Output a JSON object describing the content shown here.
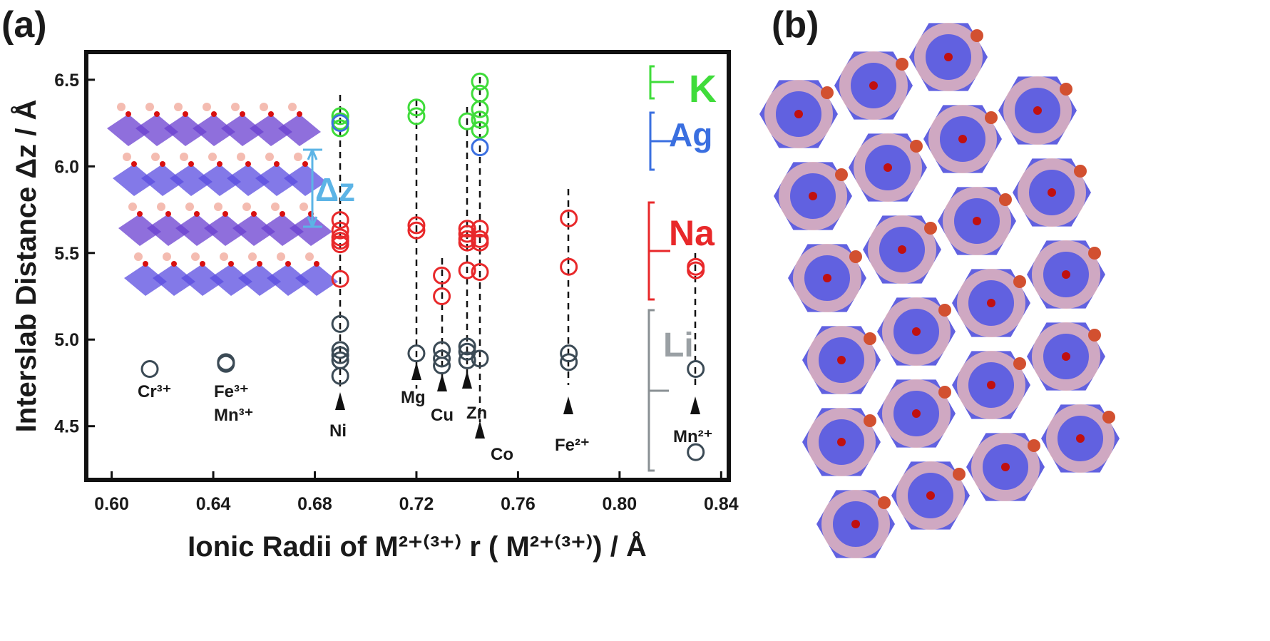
{
  "panels": [
    "(a)",
    "(b)"
  ],
  "chart_data": {
    "type": "scatter",
    "x_label": "Ionic Radii of M²⁺⁽³⁺⁾ r ( M²⁺⁽³⁺⁾) / Å",
    "y_label": "Interslab Distance Δz / Å",
    "inset_label": "Δz",
    "annotations": [
      "Cr³⁺",
      "Fe³⁺",
      "Mn³⁺",
      "Ni",
      "Mg",
      "Cu",
      "Zn",
      "Co",
      "Fe²⁺",
      "Mn²⁺"
    ],
    "xlim": [
      0.59,
      0.843
    ],
    "ylim": [
      4.19,
      6.66
    ],
    "xticks": [
      {
        "value": 0.6,
        "label": "0.60"
      },
      0.64,
      0.68,
      0.72,
      0.76,
      {
        "value": 0.8,
        "label": "0.80"
      },
      0.84
    ],
    "yticks": [
      4.5,
      {
        "value": 5,
        "label": "5.0"
      },
      5.5,
      {
        "value": 6,
        "label": "6.0"
      },
      6.5
    ],
    "series": [
      {
        "name": "K",
        "color": "#3fdc3a",
        "x": [
          0.69,
          0.69,
          0.69,
          0.72,
          0.72,
          0.74,
          0.745,
          0.745,
          0.745,
          0.745,
          0.745
        ],
        "values": [
          6.29,
          6.26,
          6.22,
          6.34,
          6.29,
          6.26,
          6.49,
          6.42,
          6.33,
          6.27,
          6.21
        ]
      },
      {
        "name": "Ag",
        "color": "#3a6fe0",
        "x": [
          0.69,
          0.745
        ],
        "values": [
          6.25,
          6.11
        ]
      },
      {
        "name": "Na",
        "color": "#e8282a",
        "x": [
          0.69,
          0.69,
          0.69,
          0.69,
          0.69,
          0.69,
          0.72,
          0.72,
          0.73,
          0.73,
          0.74,
          0.74,
          0.74,
          0.74,
          0.74,
          0.745,
          0.745,
          0.745,
          0.745,
          0.78,
          0.78,
          0.83,
          0.83
        ],
        "values": [
          5.69,
          5.63,
          5.59,
          5.57,
          5.55,
          5.35,
          5.66,
          5.63,
          5.37,
          5.25,
          5.64,
          5.61,
          5.58,
          5.56,
          5.4,
          5.64,
          5.58,
          5.56,
          5.39,
          5.7,
          5.42,
          5.42,
          5.4
        ]
      },
      {
        "name": "Li",
        "color": "#3b4a55",
        "x": [
          0.615,
          0.645,
          0.645,
          0.69,
          0.69,
          0.69,
          0.69,
          0.69,
          0.72,
          0.73,
          0.73,
          0.73,
          0.74,
          0.74,
          0.74,
          0.745,
          0.78,
          0.78,
          0.83,
          0.83
        ],
        "values": [
          4.83,
          4.87,
          4.86,
          5.09,
          4.94,
          4.91,
          4.88,
          4.79,
          4.92,
          4.94,
          4.89,
          4.85,
          4.96,
          4.93,
          4.88,
          4.89,
          4.92,
          4.87,
          4.83,
          4.35
        ]
      }
    ]
  }
}
